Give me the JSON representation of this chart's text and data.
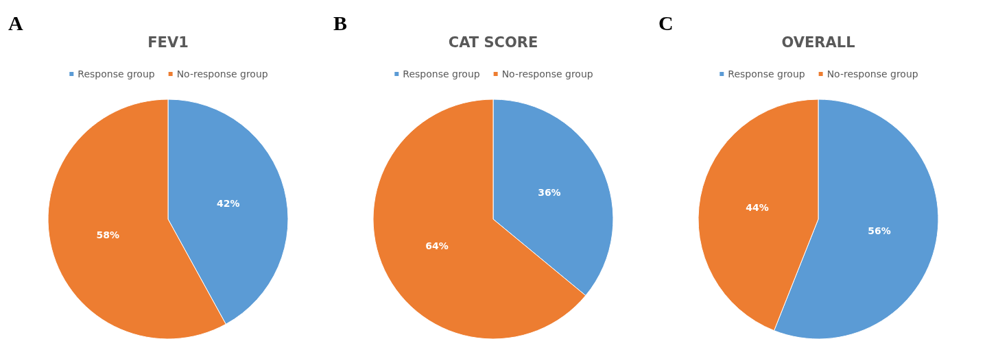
{
  "chart_data": [
    {
      "type": "pie",
      "title": "FEV1",
      "categories": [
        "Response group",
        "No-response group"
      ],
      "values": [
        42,
        58
      ],
      "colors": [
        "#5b9bd5",
        "#ed7d31"
      ],
      "value_labels": [
        "42%",
        "58%"
      ],
      "legend": "top",
      "annotations": [
        "A"
      ]
    },
    {
      "type": "pie",
      "title": "CAT SCORE",
      "categories": [
        "Response group",
        "No-response group"
      ],
      "values": [
        36,
        64
      ],
      "colors": [
        "#5b9bd5",
        "#ed7d31"
      ],
      "value_labels": [
        "36%",
        "64%"
      ],
      "legend": "top",
      "annotations": [
        "B"
      ]
    },
    {
      "type": "pie",
      "title": "OVERALL",
      "categories": [
        "Response group",
        "No-response group"
      ],
      "values": [
        56,
        44
      ],
      "colors": [
        "#5b9bd5",
        "#ed7d31"
      ],
      "value_labels": [
        "56%",
        "44%"
      ],
      "legend": "top",
      "annotations": [
        "C"
      ]
    }
  ]
}
